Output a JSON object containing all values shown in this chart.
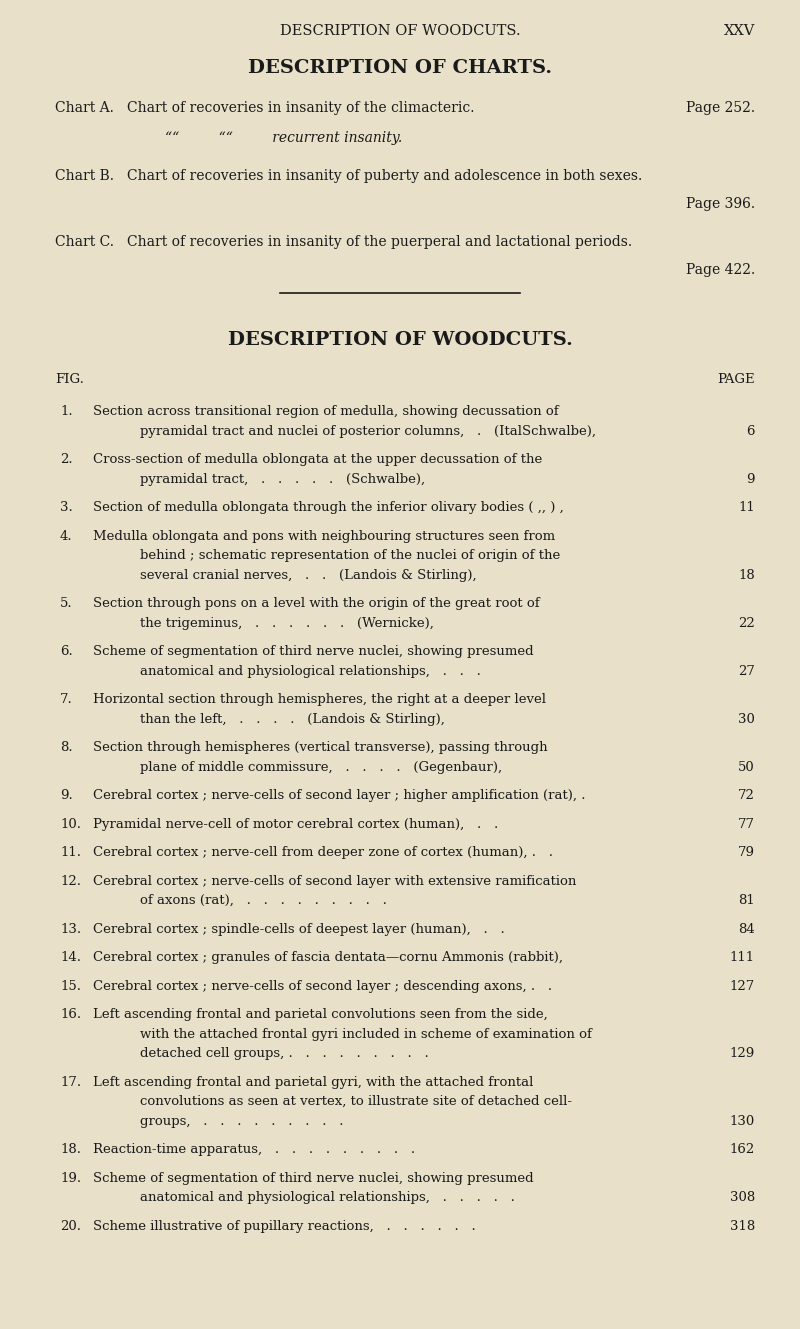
{
  "bg_color": "#e8e0c8",
  "text_color": "#1a1a1a",
  "page_header_left": "DESCRIPTION OF WOODCUTS.",
  "page_header_right": "XXV",
  "section1_title": "DESCRIPTION OF CHARTS.",
  "chart_entries": [
    {
      "label": "Chart A.",
      "label_style": "smallcaps",
      "text": "Chart of recoveries in insanity of the climacteric.",
      "page_text": "Page 252.",
      "continuation": "““         ““         recurrent insanity."
    },
    {
      "label": "Chart B.",
      "label_style": "smallcaps",
      "text": "Chart of recoveries in insanity of puberty and adolescence in both sexes.",
      "page_text": "Page 396.",
      "continuation": null
    },
    {
      "label": "Chart C.",
      "label_style": "smallcaps",
      "text": "Chart of recoveries in insanity of the puerperal and lactational periods.",
      "page_text": "Page 422.",
      "continuation": null
    }
  ],
  "section2_title": "DESCRIPTION OF WOODCUTS.",
  "col_fig": "FIG.",
  "col_page": "PAGE",
  "woodcut_entries": [
    {
      "num": "1.",
      "line1": "Section across transitional region of medulla, showing decussation of",
      "line2": "pyramidal tract and nuclei of posterior columns,   .   (Schwalbe),",
      "page": "6"
    },
    {
      "num": "2.",
      "line1": "Cross-section of medulla oblongata at the upper decussation of the",
      "line2": "pyramidal tract,   .   .   .   .   .   (Schwalbe),",
      "page": "9"
    },
    {
      "num": "3.",
      "line1": "Section of medulla oblongata through the inferior olivary bodies ( ,, ) ,",
      "line2": null,
      "page": "11"
    },
    {
      "num": "4.",
      "line1": "Medulla oblongata and pons with neighbouring structures seen from",
      "line2": "behind ; schematic representation of the nuclei of origin of the",
      "line3": "several cranial nerves,   .   .   (Landois & Stirling),",
      "page": "18"
    },
    {
      "num": "5.",
      "line1": "Section through pons on a level with the origin of the great root of",
      "line2": "the trigeminus,   .   .   .   .   .   .   (Wernicke),",
      "page": "22"
    },
    {
      "num": "6.",
      "line1": "Scheme of segmentation of third nerve nuclei, showing presumed",
      "line2": "anatomical and physiological relationships,   .   .   .",
      "page": "27"
    },
    {
      "num": "7.",
      "line1": "Horizontal section through hemispheres, the right at a deeper level",
      "line2": "than the left,   .   .   .   .   (Landois & Stirling),",
      "page": "30"
    },
    {
      "num": "8.",
      "line1": "Section through hemispheres (vertical transverse), passing through",
      "line2": "plane of middle commissure,   .   .   .   .   (Gegenbaur),",
      "page": "50"
    },
    {
      "num": "9.",
      "line1": "Cerebral cortex ; nerve-cells of second layer ; higher amplification (rat), .",
      "line2": null,
      "page": "72"
    },
    {
      "num": "10.",
      "line1": "Pyramidal nerve-cell of motor cerebral cortex (human),   .   .",
      "line2": null,
      "page": "77"
    },
    {
      "num": "11.",
      "line1": "Cerebral cortex ; nerve-cell from deeper zone of cortex (human), .   .",
      "line2": null,
      "page": "79"
    },
    {
      "num": "12.",
      "line1": "Cerebral cortex ; nerve-cells of second layer with extensive ramification",
      "line2": "of axons (rat),   .   .   .   .   .   .   .   .   .",
      "page": "81"
    },
    {
      "num": "13.",
      "line1": "Cerebral cortex ; spindle-cells of deepest layer (human),   .   .",
      "line2": null,
      "page": "84"
    },
    {
      "num": "14.",
      "line1": "Cerebral cortex ; granules of fascia dentata—cornu Ammonis (rabbit),",
      "line2": null,
      "page": "111"
    },
    {
      "num": "15.",
      "line1": "Cerebral cortex ; nerve-cells of second layer ; descending axons, .   .",
      "line2": null,
      "page": "127"
    },
    {
      "num": "16.",
      "line1": "Left ascending frontal and parietal convolutions seen from the side,",
      "line2": "with the attached frontal gyri included in scheme of examination of",
      "line3": "detached cell groups, .   .   .   .   .   .   .   .   .",
      "page": "129"
    },
    {
      "num": "17.",
      "line1": "Left ascending frontal and parietal gyri, with the attached frontal",
      "line2": "convolutions as seen at vertex, to illustrate site of detached cell-",
      "line3": "groups,   .   .   .   .   .   .   .   .   .",
      "page": "130"
    },
    {
      "num": "18.",
      "line1": "Reaction-time apparatus,   .   .   .   .   .   .   .   .   .",
      "line2": null,
      "page": "162"
    },
    {
      "num": "19.",
      "line1": "Scheme of segmentation of third nerve nuclei, showing presumed",
      "line2": "anatomical and physiological relationships,   .   .   .   .   .",
      "page": "308"
    },
    {
      "num": "20.",
      "line1": "Scheme illustrative of pupillary reactions,   .   .   .   .   .   .",
      "line2": null,
      "page": "318"
    }
  ]
}
